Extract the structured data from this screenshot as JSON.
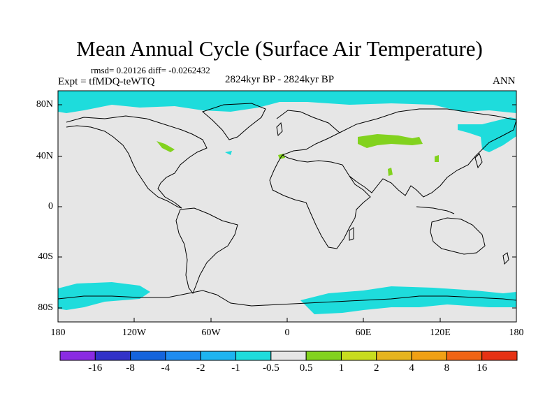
{
  "figure": {
    "title": "Mean Annual Cycle (Surface Air Temperature)",
    "stats": "rmsd= 0.20126 diff= -0.0262432",
    "expt": "Expt = tfMDQ-teWTQ",
    "period": "2824kyr BP - 2824kyr BP",
    "season": "ANN"
  },
  "map": {
    "projection": "cylindrical equidistant",
    "lon_range": [
      -180,
      180
    ],
    "lat_range": [
      -90,
      90
    ],
    "lat_labels": [
      "80N",
      "40N",
      "0",
      "40S",
      "80S"
    ],
    "lon_labels": [
      "180",
      "120W",
      "60W",
      "0",
      "60E",
      "120E",
      "180"
    ],
    "background_color": "#e6e6e6"
  },
  "colorbar": {
    "labels": [
      "-16",
      "-8",
      "-4",
      "-2",
      "-1",
      "-0.5",
      "0.5",
      "1",
      "2",
      "4",
      "8",
      "16"
    ],
    "colors": [
      "#8a2be2",
      "#3232c8",
      "#1464dc",
      "#1e8cf0",
      "#1eb4f0",
      "#1edcdc",
      "#e6e6e6",
      "#82d21e",
      "#c8dc1e",
      "#e6b41e",
      "#f0a014",
      "#f06414",
      "#e63214"
    ]
  }
}
